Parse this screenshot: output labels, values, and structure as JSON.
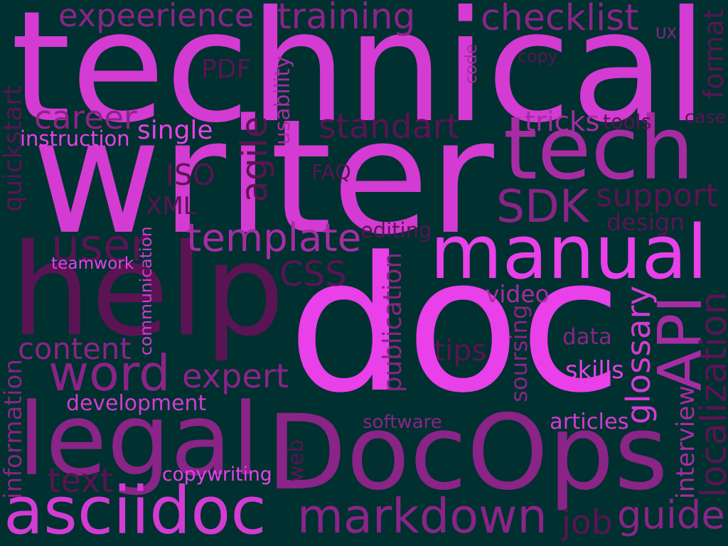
{
  "background": "#00302f",
  "words": [
    {
      "text": "technical",
      "color": "#d43bd3"
    },
    {
      "text": "writer",
      "color": "#d43bd3"
    },
    {
      "text": "doc",
      "color": "#e940ea"
    },
    {
      "text": "help",
      "color": "#5a1454"
    },
    {
      "text": "DocOps",
      "color": "#8a2487"
    },
    {
      "text": "manual",
      "color": "#e940ea"
    },
    {
      "text": "tech",
      "color": "#a72ca4"
    },
    {
      "text": "legal",
      "color": "#8a2487"
    },
    {
      "text": "asciidoc",
      "color": "#d43bd3"
    },
    {
      "text": "markdown",
      "color": "#8a2487"
    },
    {
      "text": "API",
      "color": "#a72ca4"
    },
    {
      "text": "word",
      "color": "#8a2487"
    },
    {
      "text": "guide",
      "color": "#8a2487"
    },
    {
      "text": "SDK",
      "color": "#8a2487"
    },
    {
      "text": "template",
      "color": "#a72ca4"
    },
    {
      "text": "expeerience",
      "color": "#8a2487"
    },
    {
      "text": "training",
      "color": "#8a2487"
    },
    {
      "text": "checklist",
      "color": "#8a2487"
    },
    {
      "text": "career",
      "color": "#8a2487"
    },
    {
      "text": "standart",
      "color": "#5a1454"
    },
    {
      "text": "support",
      "color": "#5a1454"
    },
    {
      "text": "user",
      "color": "#5a1454"
    },
    {
      "text": "CSS",
      "color": "#5a1454"
    },
    {
      "text": "content",
      "color": "#8a2487"
    },
    {
      "text": "expert",
      "color": "#8a2487"
    },
    {
      "text": "glossary",
      "color": "#d43bd3"
    },
    {
      "text": "localization",
      "color": "#5a1454"
    },
    {
      "text": "ISO",
      "color": "#5a1454"
    },
    {
      "text": "XML",
      "color": "#5a1454"
    },
    {
      "text": "PDF",
      "color": "#5a1454"
    },
    {
      "text": "agile",
      "color": "#5a1454"
    },
    {
      "text": "development",
      "color": "#d43bd3"
    },
    {
      "text": "text",
      "color": "#5a1454"
    },
    {
      "text": "job",
      "color": "#5a1454"
    },
    {
      "text": "interview",
      "color": "#a72ca4"
    },
    {
      "text": "quickstart",
      "color": "#5a1454"
    },
    {
      "text": "information",
      "color": "#8a2487"
    },
    {
      "text": "communication",
      "color": "#d43bd3"
    },
    {
      "text": "publication",
      "color": "#8a2487"
    },
    {
      "text": "soursing",
      "color": "#8a2487"
    },
    {
      "text": "usability",
      "color": "#a72ca4"
    },
    {
      "text": "code",
      "color": "#a72ca4"
    },
    {
      "text": "format",
      "color": "#5a1454"
    },
    {
      "text": "design",
      "color": "#5a1454"
    },
    {
      "text": "tricks",
      "color": "#a72ca4"
    },
    {
      "text": "tools",
      "color": "#5a1454"
    },
    {
      "text": "single",
      "color": "#e940ea"
    },
    {
      "text": "instruction",
      "color": "#e940ea"
    },
    {
      "text": "FAQ",
      "color": "#5a1454"
    },
    {
      "text": "editing",
      "color": "#5a1454"
    },
    {
      "text": "teamwork",
      "color": "#e940ea"
    },
    {
      "text": "video",
      "color": "#a72ca4"
    },
    {
      "text": "data",
      "color": "#8a2487"
    },
    {
      "text": "tips",
      "color": "#5a1454"
    },
    {
      "text": "skills",
      "color": "#e940ea"
    },
    {
      "text": "software",
      "color": "#8a2487"
    },
    {
      "text": "articles",
      "color": "#d43bd3"
    },
    {
      "text": "copywriting",
      "color": "#e940ea"
    },
    {
      "text": "web",
      "color": "#5a1454"
    },
    {
      "text": "copy",
      "color": "#5a1454"
    },
    {
      "text": "UX",
      "color": "#8a2487"
    },
    {
      "text": "case",
      "color": "#5a1454"
    }
  ]
}
